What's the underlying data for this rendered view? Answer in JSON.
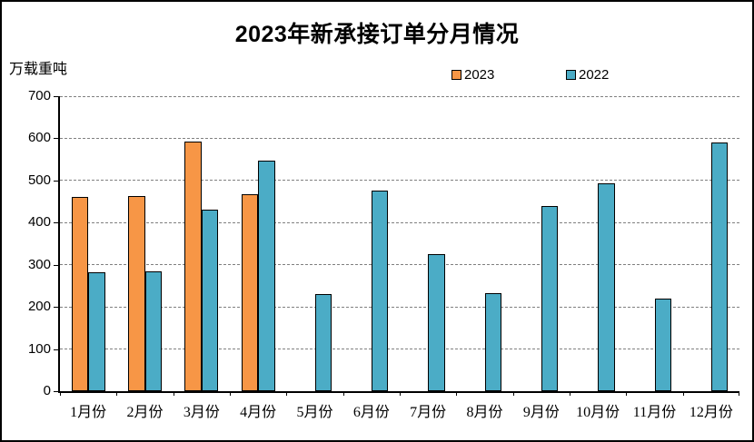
{
  "chart_data": {
    "type": "bar",
    "title": "2023年新承接订单分月情况",
    "unit_label": "万载重吨",
    "categories": [
      "1月份",
      "2月份",
      "3月份",
      "4月份",
      "5月份",
      "6月份",
      "7月份",
      "8月份",
      "9月份",
      "10月份",
      "11月份",
      "12月份"
    ],
    "series": [
      {
        "name": "2023",
        "color": "#F79646",
        "values": [
          462,
          464,
          593,
          467,
          null,
          null,
          null,
          null,
          null,
          null,
          null,
          null
        ]
      },
      {
        "name": "2022",
        "color": "#4BACC6",
        "values": [
          282,
          284,
          430,
          548,
          230,
          476,
          326,
          232,
          439,
          493,
          219,
          591
        ]
      }
    ],
    "ylim": [
      0,
      700
    ],
    "ytick_interval": 100,
    "yticks": [
      0,
      100,
      200,
      300,
      400,
      500,
      600,
      700
    ],
    "xlabel": "",
    "ylabel": "万载重吨",
    "grid": "horizontal-dashed",
    "legend_position": "top-center",
    "bar_outline_color": "#000000",
    "gridline_color": "#808080",
    "axis_color": "#000000",
    "background_color": "#FFFFFF"
  }
}
